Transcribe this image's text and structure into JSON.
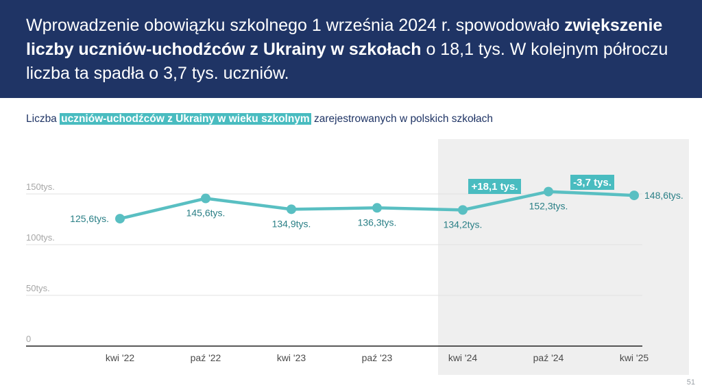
{
  "header": {
    "text_part1": "Wprowadzenie obowiązku szkolnego 1 września 2024 r. spowodowało ",
    "text_bold": "zwiększenie liczby uczniów-uchodźców z Ukrainy w szkołach",
    "text_part2": " o 18,1 tys. W kolejnym półroczu liczba ta spadła o 3,7 tys. uczniów."
  },
  "subtitle": {
    "before": "Liczba ",
    "highlight": "uczniów-uchodźców z Ukrainy w wieku szkolnym",
    "after": " zarejestrowanych w polskich szkołach"
  },
  "page_number": "51",
  "colors": {
    "header_bg": "#1f3465",
    "accent": "#49bcc0",
    "line": "#59bfc2",
    "label": "#2a7f86",
    "shade": "#efefef"
  },
  "chart_data": {
    "type": "line",
    "categories": [
      "kwi '22",
      "paź '22",
      "kwi '23",
      "paź '23",
      "kwi '24",
      "paź '24",
      "kwi '25"
    ],
    "values": [
      125.6,
      145.6,
      134.9,
      136.3,
      134.2,
      152.3,
      148.6
    ],
    "value_labels": [
      "125,6tys.",
      "145,6tys.",
      "134,9tys.",
      "136,3tys.",
      "134,2tys.",
      "152,3tys.",
      "148,6tys."
    ],
    "y_ticks": [
      0,
      50,
      100,
      150
    ],
    "y_tick_labels": [
      "0",
      "50tys.",
      "100tys.",
      "150tys."
    ],
    "ylim": [
      0,
      150
    ],
    "grid": true,
    "shaded_period_from": "kwi '24",
    "annotations": [
      {
        "text": "+18,1 tys.",
        "between": [
          "kwi '24",
          "paź '24"
        ]
      },
      {
        "text": "-3,7 tys.",
        "between": [
          "paź '24",
          "kwi '25"
        ]
      }
    ]
  }
}
